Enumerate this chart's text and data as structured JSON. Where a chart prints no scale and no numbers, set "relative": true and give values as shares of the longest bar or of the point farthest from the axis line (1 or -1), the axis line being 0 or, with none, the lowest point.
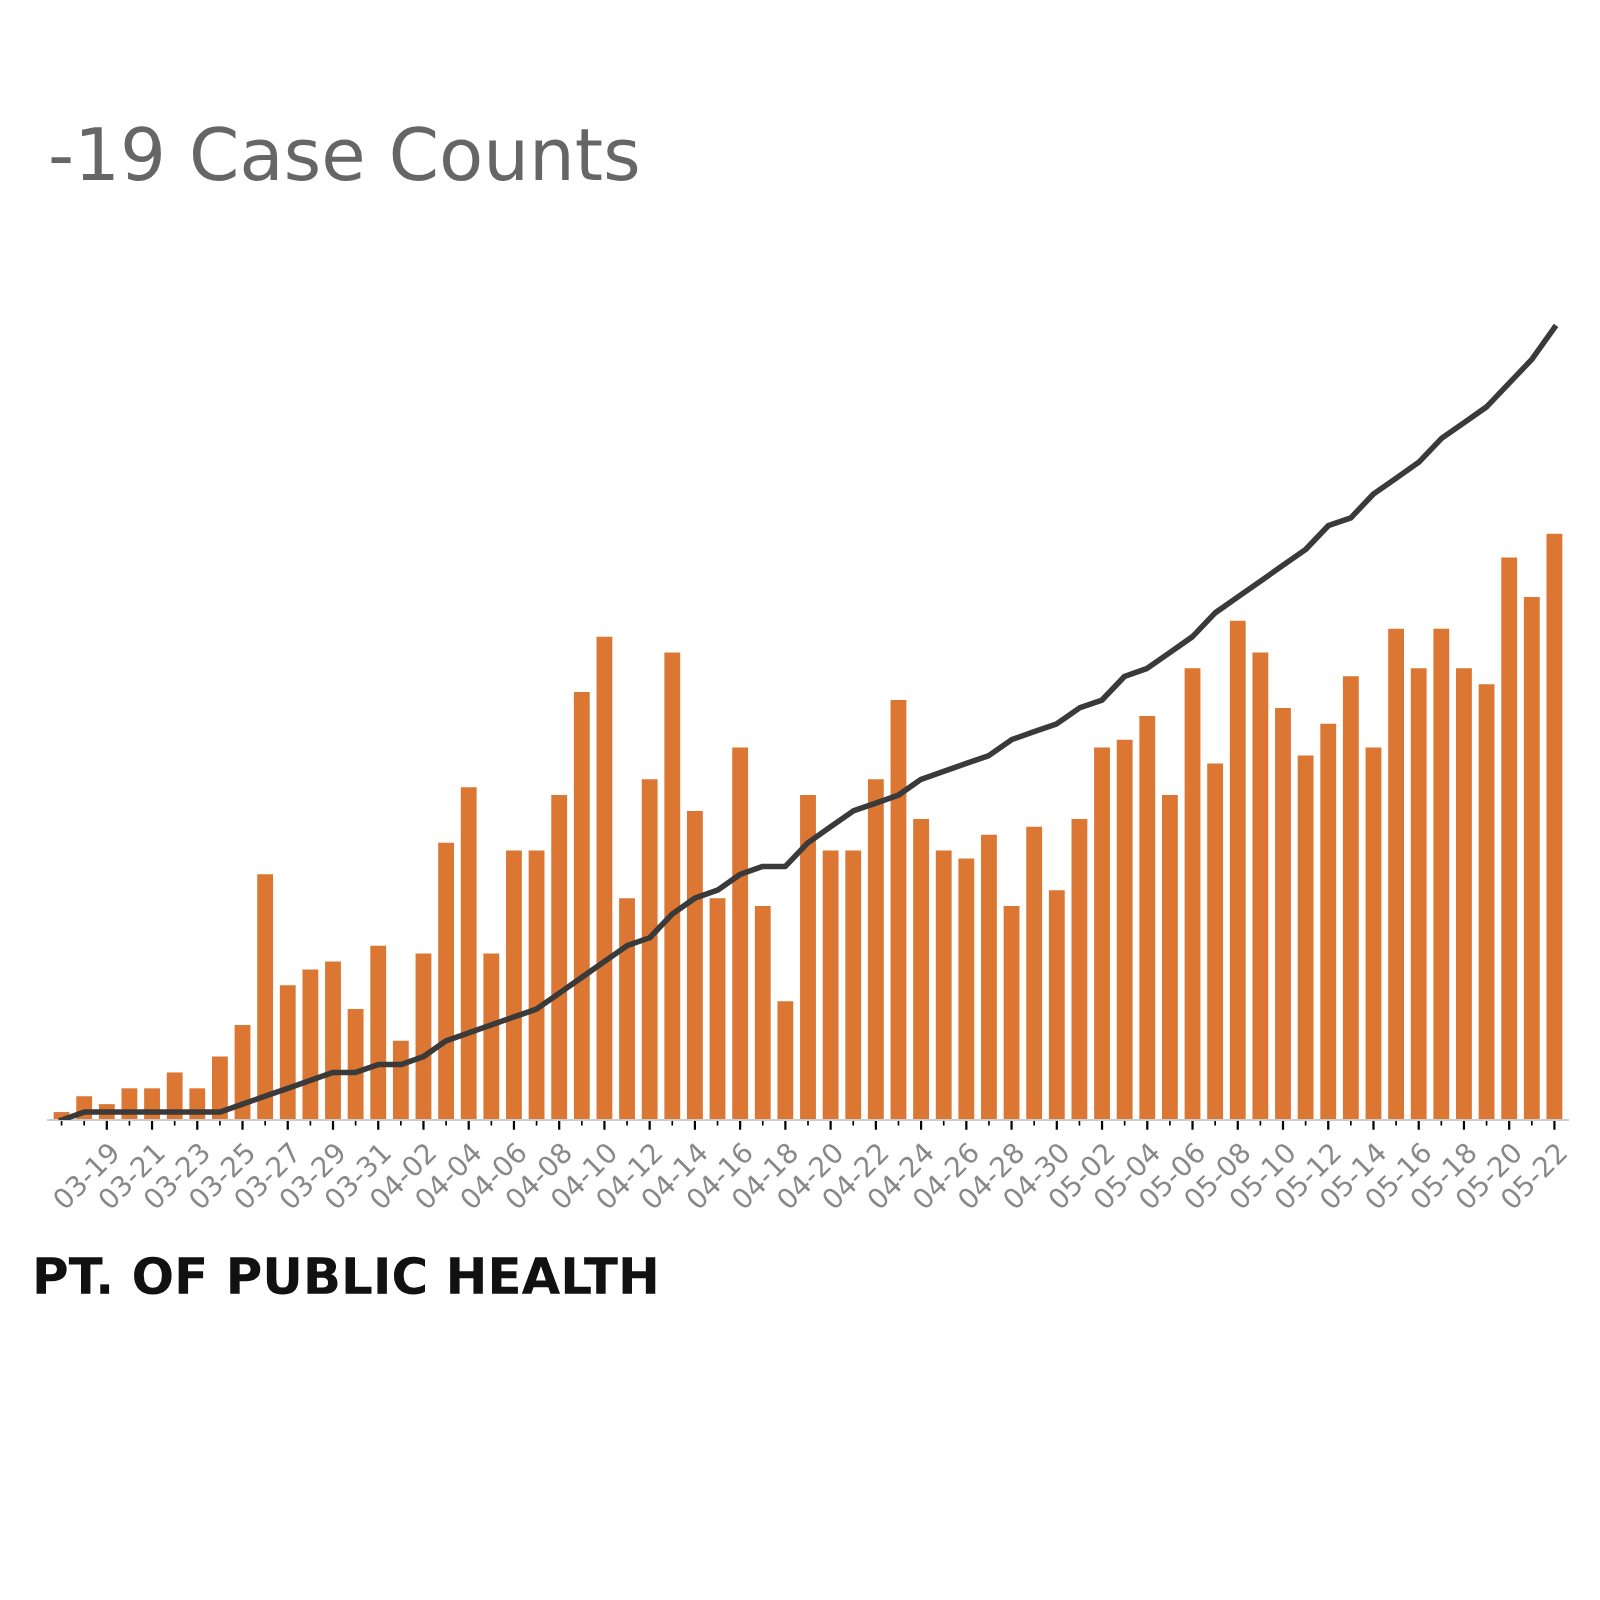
{
  "chart_data": {
    "type": "bar",
    "title": "-19 Case Counts",
    "relative": true,
    "categories": [
      null,
      null,
      "03-19",
      null,
      "03-21",
      null,
      "03-23",
      null,
      "03-25",
      null,
      "03-27",
      null,
      "03-29",
      null,
      "03-31",
      null,
      "04-02",
      null,
      "04-04",
      null,
      "04-06",
      null,
      "04-08",
      null,
      "04-10",
      null,
      "04-12",
      null,
      "04-14",
      null,
      "04-16",
      null,
      "04-18",
      null,
      "04-20",
      null,
      "04-22",
      null,
      "04-24",
      null,
      "04-26",
      null,
      "04-28",
      null,
      "04-30",
      null,
      "05-02",
      null,
      "05-04",
      null,
      "05-06",
      null,
      "05-08",
      null,
      "05-10",
      null,
      "05-12",
      null,
      "05-14",
      null,
      "05-16",
      null,
      "05-18",
      null,
      "05-20",
      null,
      "05-22"
    ],
    "series": [
      {
        "color": "#dc7633",
        "values": [
          0.01,
          0.03,
          0.02,
          0.04,
          0.04,
          0.06,
          0.04,
          0.08,
          0.12,
          0.31,
          0.17,
          0.19,
          0.2,
          0.14,
          0.22,
          0.1,
          0.21,
          0.35,
          0.42,
          0.21,
          0.34,
          0.34,
          0.41,
          0.54,
          0.61,
          0.28,
          0.43,
          0.59,
          0.39,
          0.28,
          0.47,
          0.27,
          0.15,
          0.41,
          0.34,
          0.34,
          0.43,
          0.53,
          0.38,
          0.34,
          0.33,
          0.36,
          0.27,
          0.37,
          0.29,
          0.38,
          0.47,
          0.48,
          0.51,
          0.41,
          0.57,
          0.45,
          0.63,
          0.59,
          0.52,
          0.46,
          0.5,
          0.56,
          0.47,
          0.62,
          0.57,
          0.62,
          0.57,
          0.55,
          0.71,
          0.66,
          0.74
        ]
      },
      {
        "type": "line",
        "color": "#3a3a3a",
        "values": [
          0,
          0.01,
          0.01,
          0.01,
          0.01,
          0.01,
          0.01,
          0.01,
          0.02,
          0.03,
          0.04,
          0.05,
          0.06,
          0.06,
          0.07,
          0.07,
          0.08,
          0.1,
          0.11,
          0.12,
          0.13,
          0.14,
          0.16,
          0.18,
          0.2,
          0.22,
          0.23,
          0.26,
          0.28,
          0.29,
          0.31,
          0.32,
          0.32,
          0.35,
          0.37,
          0.39,
          0.4,
          0.41,
          0.43,
          0.44,
          0.45,
          0.46,
          0.48,
          0.49,
          0.5,
          0.52,
          0.53,
          0.56,
          0.57,
          0.59,
          0.61,
          0.64,
          0.66,
          0.68,
          0.7,
          0.72,
          0.75,
          0.76,
          0.79,
          0.81,
          0.83,
          0.86,
          0.88,
          0.9,
          0.93,
          0.96,
          1
        ]
      }
    ],
    "annotations": [
      "PT. OF PUBLIC HEALTH"
    ]
  }
}
